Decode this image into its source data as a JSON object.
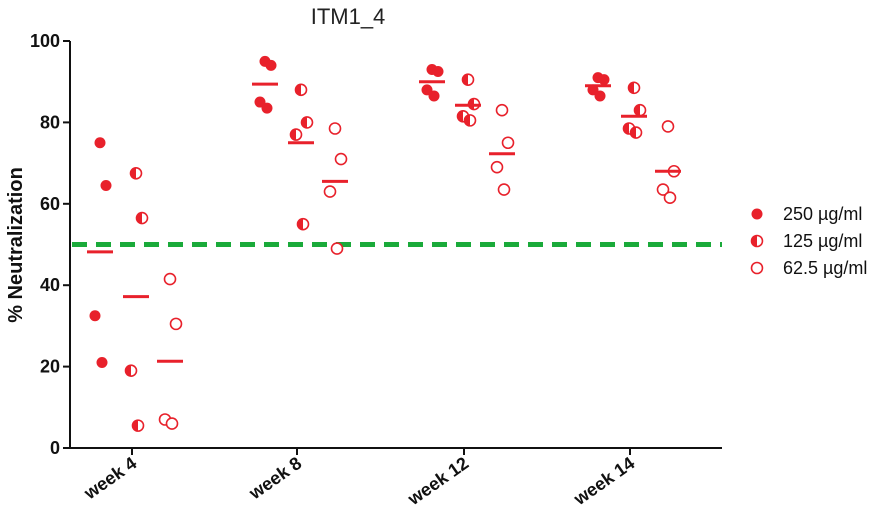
{
  "chart_data": {
    "type": "scatter",
    "title": "ITM1_4",
    "ylabel": "% Neutralization",
    "xlabel": "",
    "ylim": [
      0,
      100
    ],
    "yticks": [
      0,
      20,
      40,
      60,
      80,
      100
    ],
    "categories": [
      "week 4",
      "week 8",
      "week 12",
      "week 14"
    ],
    "reference_line": {
      "y": 50,
      "color": "#1aaa3a",
      "style": "dashed"
    },
    "point_color": "#e8212b",
    "legend_position": "right",
    "series": [
      {
        "name": "250 µg/ml",
        "marker": "filled-circle",
        "points": [
          [
            75,
            64.5,
            32.5,
            21
          ],
          [
            95,
            94,
            85,
            83.5
          ],
          [
            93,
            92.5,
            88,
            86.5
          ],
          [
            91,
            90.5,
            88,
            86.5
          ]
        ],
        "mean": [
          48.2,
          89.4,
          90,
          89
        ]
      },
      {
        "name": "125 µg/ml",
        "marker": "half-filled-circle",
        "points": [
          [
            67.5,
            56.5,
            19,
            5.5
          ],
          [
            88,
            80,
            77,
            55
          ],
          [
            90.5,
            84.5,
            81.5,
            80.5
          ],
          [
            88.5,
            83,
            78.5,
            77.5
          ]
        ],
        "mean": [
          37.2,
          75,
          84.2,
          81.5
        ]
      },
      {
        "name": "62.5 µg/ml",
        "marker": "open-circle",
        "points": [
          [
            41.5,
            30.5,
            7,
            6
          ],
          [
            78.5,
            71,
            63,
            49
          ],
          [
            83,
            75,
            69,
            63.5
          ],
          [
            79,
            68,
            63.5,
            61.5
          ]
        ],
        "mean": [
          21.3,
          65.5,
          72.3,
          68
        ]
      }
    ]
  }
}
